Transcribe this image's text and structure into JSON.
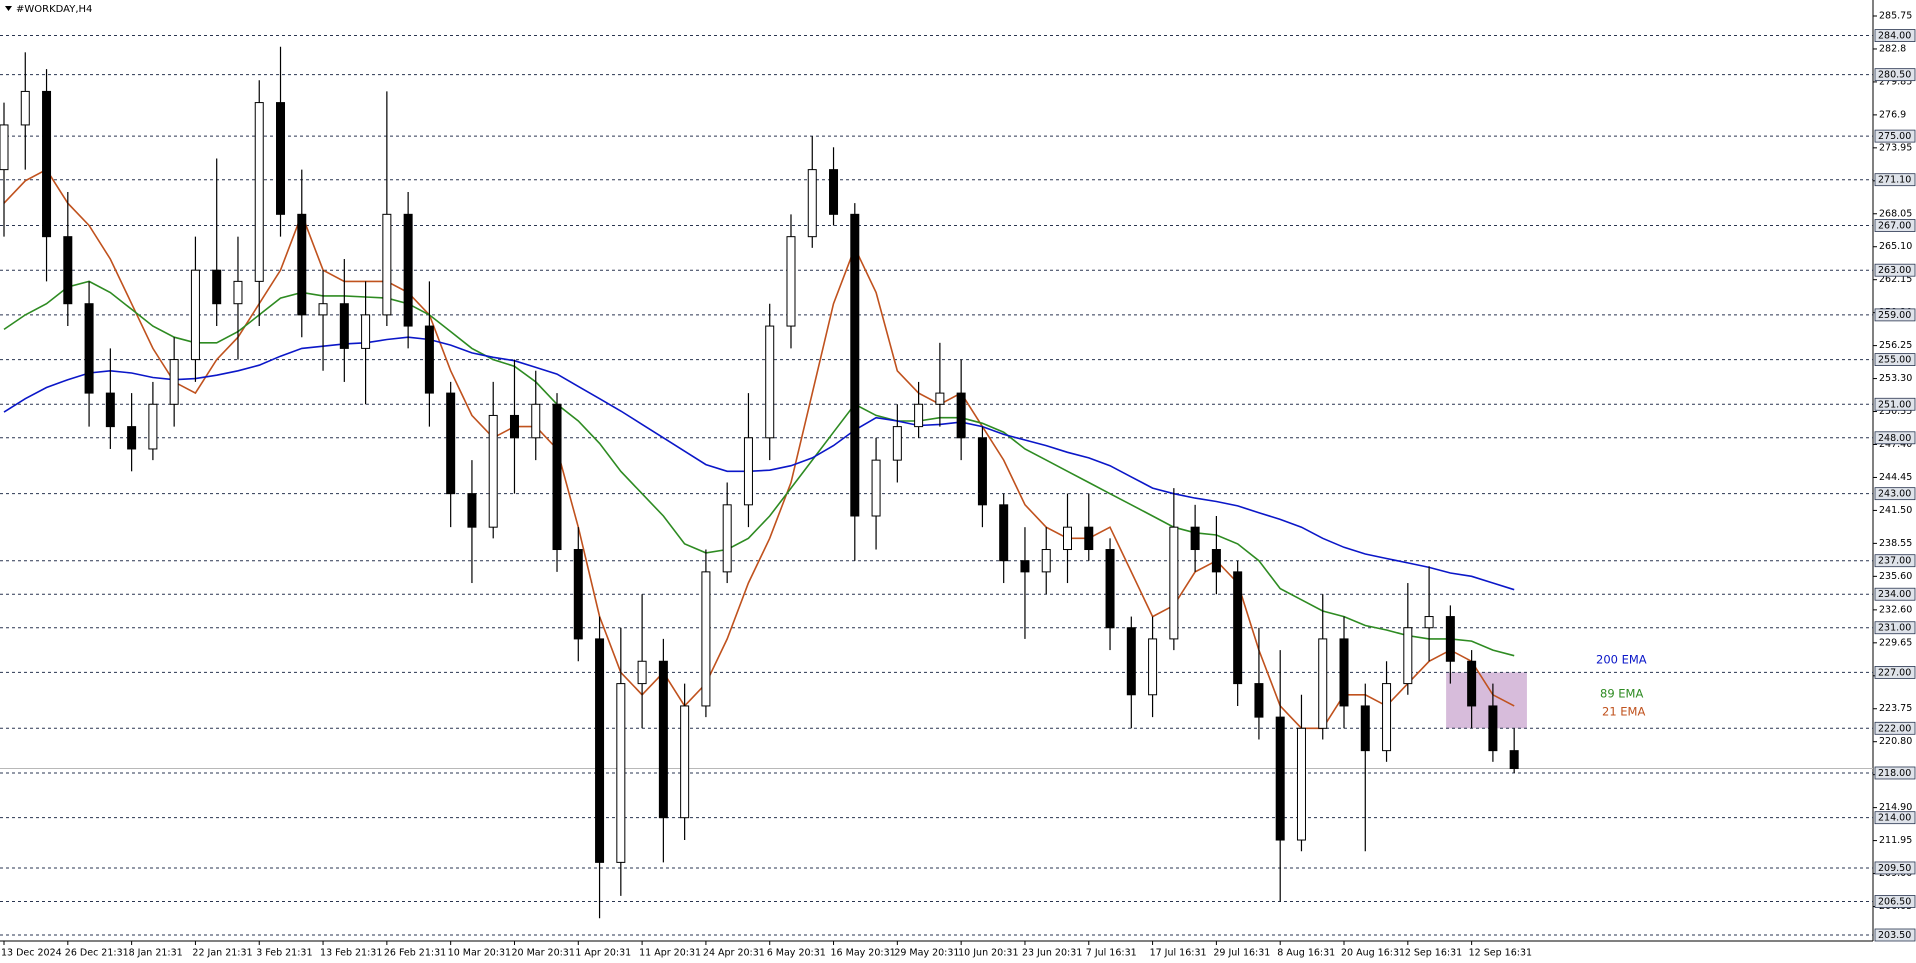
{
  "chart_data": {
    "type": "candlestick",
    "title": "#WORKDAY,H4",
    "categories": [
      "13 Dec 2024",
      null,
      null,
      "26 Dec 21:31",
      null,
      null,
      "8 Jan 21:31",
      null,
      null,
      "22 Jan 21:31",
      null,
      null,
      "3 Feb 21:31",
      null,
      null,
      "13 Feb 21:31",
      null,
      null,
      "26 Feb 21:31",
      null,
      null,
      "10 Mar 20:31",
      null,
      null,
      "20 Mar 20:31",
      null,
      null,
      "1 Apr 20:31",
      null,
      null,
      "11 Apr 20:31",
      null,
      null,
      "24 Apr 20:31",
      null,
      null,
      "6 May 20:31",
      null,
      null,
      "16 May 20:31",
      null,
      null,
      "29 May 20:31",
      null,
      null,
      "10 Jun 20:31",
      null,
      null,
      "23 Jun 20:31",
      null,
      null,
      "7 Jul 16:31",
      null,
      null,
      "17 Jul 16:31",
      null,
      null,
      "29 Jul 16:31",
      null,
      null,
      "8 Aug 16:31",
      null,
      null,
      "20 Aug 16:31",
      null,
      null,
      "2 Sep 16:31",
      null,
      null,
      "12 Sep 16:31",
      null,
      null
    ],
    "open": [
      272,
      276,
      279,
      266,
      260,
      252,
      249,
      247,
      251,
      255,
      263,
      260,
      262,
      278,
      268,
      259,
      260,
      256,
      259,
      268,
      258,
      252,
      243,
      240,
      250,
      248,
      251,
      238,
      230,
      210,
      226,
      228,
      214,
      224,
      236,
      242,
      248,
      258,
      266,
      272,
      268,
      241,
      246,
      249,
      251,
      252,
      248,
      242,
      237,
      236,
      238,
      240,
      238,
      231,
      225,
      230,
      240,
      238,
      236,
      226,
      223,
      212,
      222,
      230,
      224,
      220,
      226,
      231,
      232,
      228,
      224,
      220
    ],
    "high": [
      278,
      282.5,
      281,
      270,
      262,
      256,
      252,
      253,
      257,
      266,
      273,
      266,
      280,
      283,
      272,
      263,
      264,
      262,
      279,
      270,
      262,
      253,
      246,
      253,
      255,
      254,
      252,
      240,
      232,
      231,
      234,
      230,
      226,
      238,
      244,
      252,
      260,
      268,
      275,
      274,
      269,
      248,
      251,
      253,
      256.5,
      255,
      249,
      243,
      240,
      240,
      243,
      243,
      239,
      232,
      232,
      243.5,
      242,
      241,
      237,
      231,
      229,
      225,
      234,
      232,
      226,
      228,
      235,
      236.5,
      233,
      229,
      226,
      222
    ],
    "low": [
      266,
      272,
      262,
      258,
      249,
      247,
      245,
      246,
      249,
      253,
      258,
      255,
      258,
      266,
      257,
      254,
      253,
      251,
      258,
      256,
      249,
      240,
      235,
      239,
      243,
      246,
      236,
      228,
      205,
      207,
      222,
      210,
      212,
      223,
      235,
      240,
      246,
      256,
      265,
      267,
      237,
      238,
      244,
      248,
      249,
      246,
      240,
      235,
      230,
      234,
      235,
      237,
      229,
      222,
      223,
      229,
      236,
      234,
      224,
      221,
      206.5,
      211,
      221,
      222,
      211,
      219,
      225,
      228,
      226,
      222,
      219,
      218
    ],
    "close": [
      276,
      279,
      266,
      260,
      252,
      249,
      247,
      251,
      255,
      263,
      260,
      262,
      278,
      268,
      259,
      260,
      256,
      259,
      268,
      258,
      252,
      243,
      240,
      250,
      248,
      251,
      238,
      230,
      210,
      226,
      228,
      214,
      224,
      236,
      242,
      248,
      258,
      266,
      272,
      268,
      241,
      246,
      249,
      251,
      252,
      248,
      242,
      237,
      236,
      238,
      240,
      238,
      231,
      225,
      230,
      240,
      238,
      236,
      226,
      223,
      212,
      222,
      230,
      224,
      220,
      226,
      231,
      232,
      228,
      224,
      220,
      218.4
    ],
    "series": [
      {
        "name": "21 EMA",
        "color": "#c0521e",
        "values": [
          269,
          271,
          272,
          269,
          267,
          264,
          260,
          256,
          253,
          252,
          255,
          257,
          260,
          263,
          268,
          263,
          262,
          262,
          262,
          261,
          259,
          254,
          250,
          248,
          249,
          249,
          247,
          240,
          232,
          227,
          225,
          227,
          224,
          226,
          230,
          235,
          239,
          244,
          252,
          260,
          265,
          261,
          254,
          252,
          251,
          252,
          249,
          246,
          242,
          240,
          239,
          239,
          240,
          236,
          232,
          233,
          236,
          237,
          235,
          229,
          224,
          222,
          222,
          225,
          225,
          224,
          226,
          228,
          229,
          228,
          225,
          224
        ]
      },
      {
        "name": "89 EMA",
        "color": "#2e8b22",
        "values": [
          257.7,
          259,
          260,
          261.5,
          262,
          261,
          259.5,
          258,
          257,
          256.5,
          256.5,
          257.5,
          259,
          260.5,
          261,
          260.7,
          260.7,
          260.6,
          260.5,
          260,
          259,
          257.5,
          256,
          255,
          254.4,
          253,
          251,
          249.5,
          247.5,
          245,
          243,
          241,
          238.5,
          237.7,
          238,
          239,
          241,
          243.5,
          246,
          248.5,
          251,
          250,
          249.5,
          249.5,
          249.8,
          249.8,
          249.3,
          248.5,
          247,
          246,
          245,
          244,
          243,
          242,
          241,
          240,
          239.5,
          239.3,
          238.5,
          237,
          234.5,
          233.5,
          232.5,
          232,
          231.2,
          230.8,
          230.3,
          230,
          230,
          229.8,
          229,
          228.5
        ]
      },
      {
        "name": "200 EMA",
        "color": "#0b17c8",
        "values": [
          250.3,
          251.5,
          252.5,
          253.2,
          253.8,
          254,
          253.8,
          253.4,
          253.2,
          253.3,
          253.6,
          254,
          254.5,
          255.3,
          256,
          256.2,
          256.4,
          256.5,
          256.8,
          257,
          256.8,
          256.3,
          255.6,
          255.2,
          254.9,
          254.3,
          253.7,
          252.6,
          251.5,
          250.4,
          249.2,
          248,
          246.8,
          245.6,
          245,
          245,
          245.1,
          245.5,
          246.2,
          247.3,
          248.7,
          249.8,
          249.5,
          249.1,
          249.2,
          249.4,
          249,
          248.3,
          247.8,
          247.3,
          246.7,
          246.2,
          245.5,
          244.5,
          243.5,
          243,
          242.6,
          242.3,
          241.9,
          241.3,
          240.7,
          240,
          239,
          238.2,
          237.6,
          237.2,
          236.8,
          236.4,
          235.9,
          235.6,
          235,
          234.4
        ]
      }
    ],
    "ylim": [
      203.5,
      285.75
    ],
    "yticks": [
      285.75,
      282.8,
      279.85,
      276.9,
      273.95,
      {
        "value": 271,
        "label": "271.00"
      },
      268.05,
      {
        "value": 265.1,
        "label": "265.10"
      },
      262.15,
      {
        "value": 259.2,
        "label": "259.20"
      },
      256.25,
      {
        "value": 253.3,
        "label": "253.30"
      },
      250.35,
      {
        "value": 247.4,
        "label": "247.40"
      },
      244.45,
      {
        "value": 241.5,
        "label": "241.50"
      },
      238.55,
      {
        "value": 235.6,
        "label": "235.60"
      },
      {
        "value": 232.6,
        "label": "232.60"
      },
      229.65,
      {
        "value": 226.7,
        "label": "226.70"
      },
      223.75,
      {
        "value": 220.8,
        "label": "220.80"
      },
      217.85,
      {
        "value": 214.9,
        "label": "214.90"
      },
      211.95,
      {
        "value": 209,
        "label": "209.00"
      },
      206.05
    ],
    "levels": [
      {
        "value": 284,
        "label": "284.00"
      },
      {
        "value": 280.5,
        "label": "280.50"
      },
      {
        "value": 275,
        "label": "275.00"
      },
      {
        "value": 271.1,
        "label": "271.10"
      },
      {
        "value": 267,
        "label": "267.00"
      },
      {
        "value": 263,
        "label": "263.00"
      },
      {
        "value": 259,
        "label": "259.00"
      },
      {
        "value": 255,
        "label": "255.00"
      },
      {
        "value": 251,
        "label": "251.00"
      },
      {
        "value": 248,
        "label": "248.00"
      },
      {
        "value": 243,
        "label": "243.00"
      },
      {
        "value": 237,
        "label": "237.00"
      },
      {
        "value": 234,
        "label": "234.00"
      },
      {
        "value": 231,
        "label": "231.00"
      },
      {
        "value": 227,
        "label": "227.00"
      },
      {
        "value": 222,
        "label": "222.00"
      },
      {
        "value": 218,
        "label": "218.00"
      },
      {
        "value": 214,
        "label": "214.00"
      },
      {
        "value": 209.5,
        "label": "209.50"
      },
      {
        "value": 206.5,
        "label": "206.50"
      },
      {
        "value": 203.5,
        "label": "203.50"
      }
    ],
    "zone": [
      222,
      227
    ]
  }
}
